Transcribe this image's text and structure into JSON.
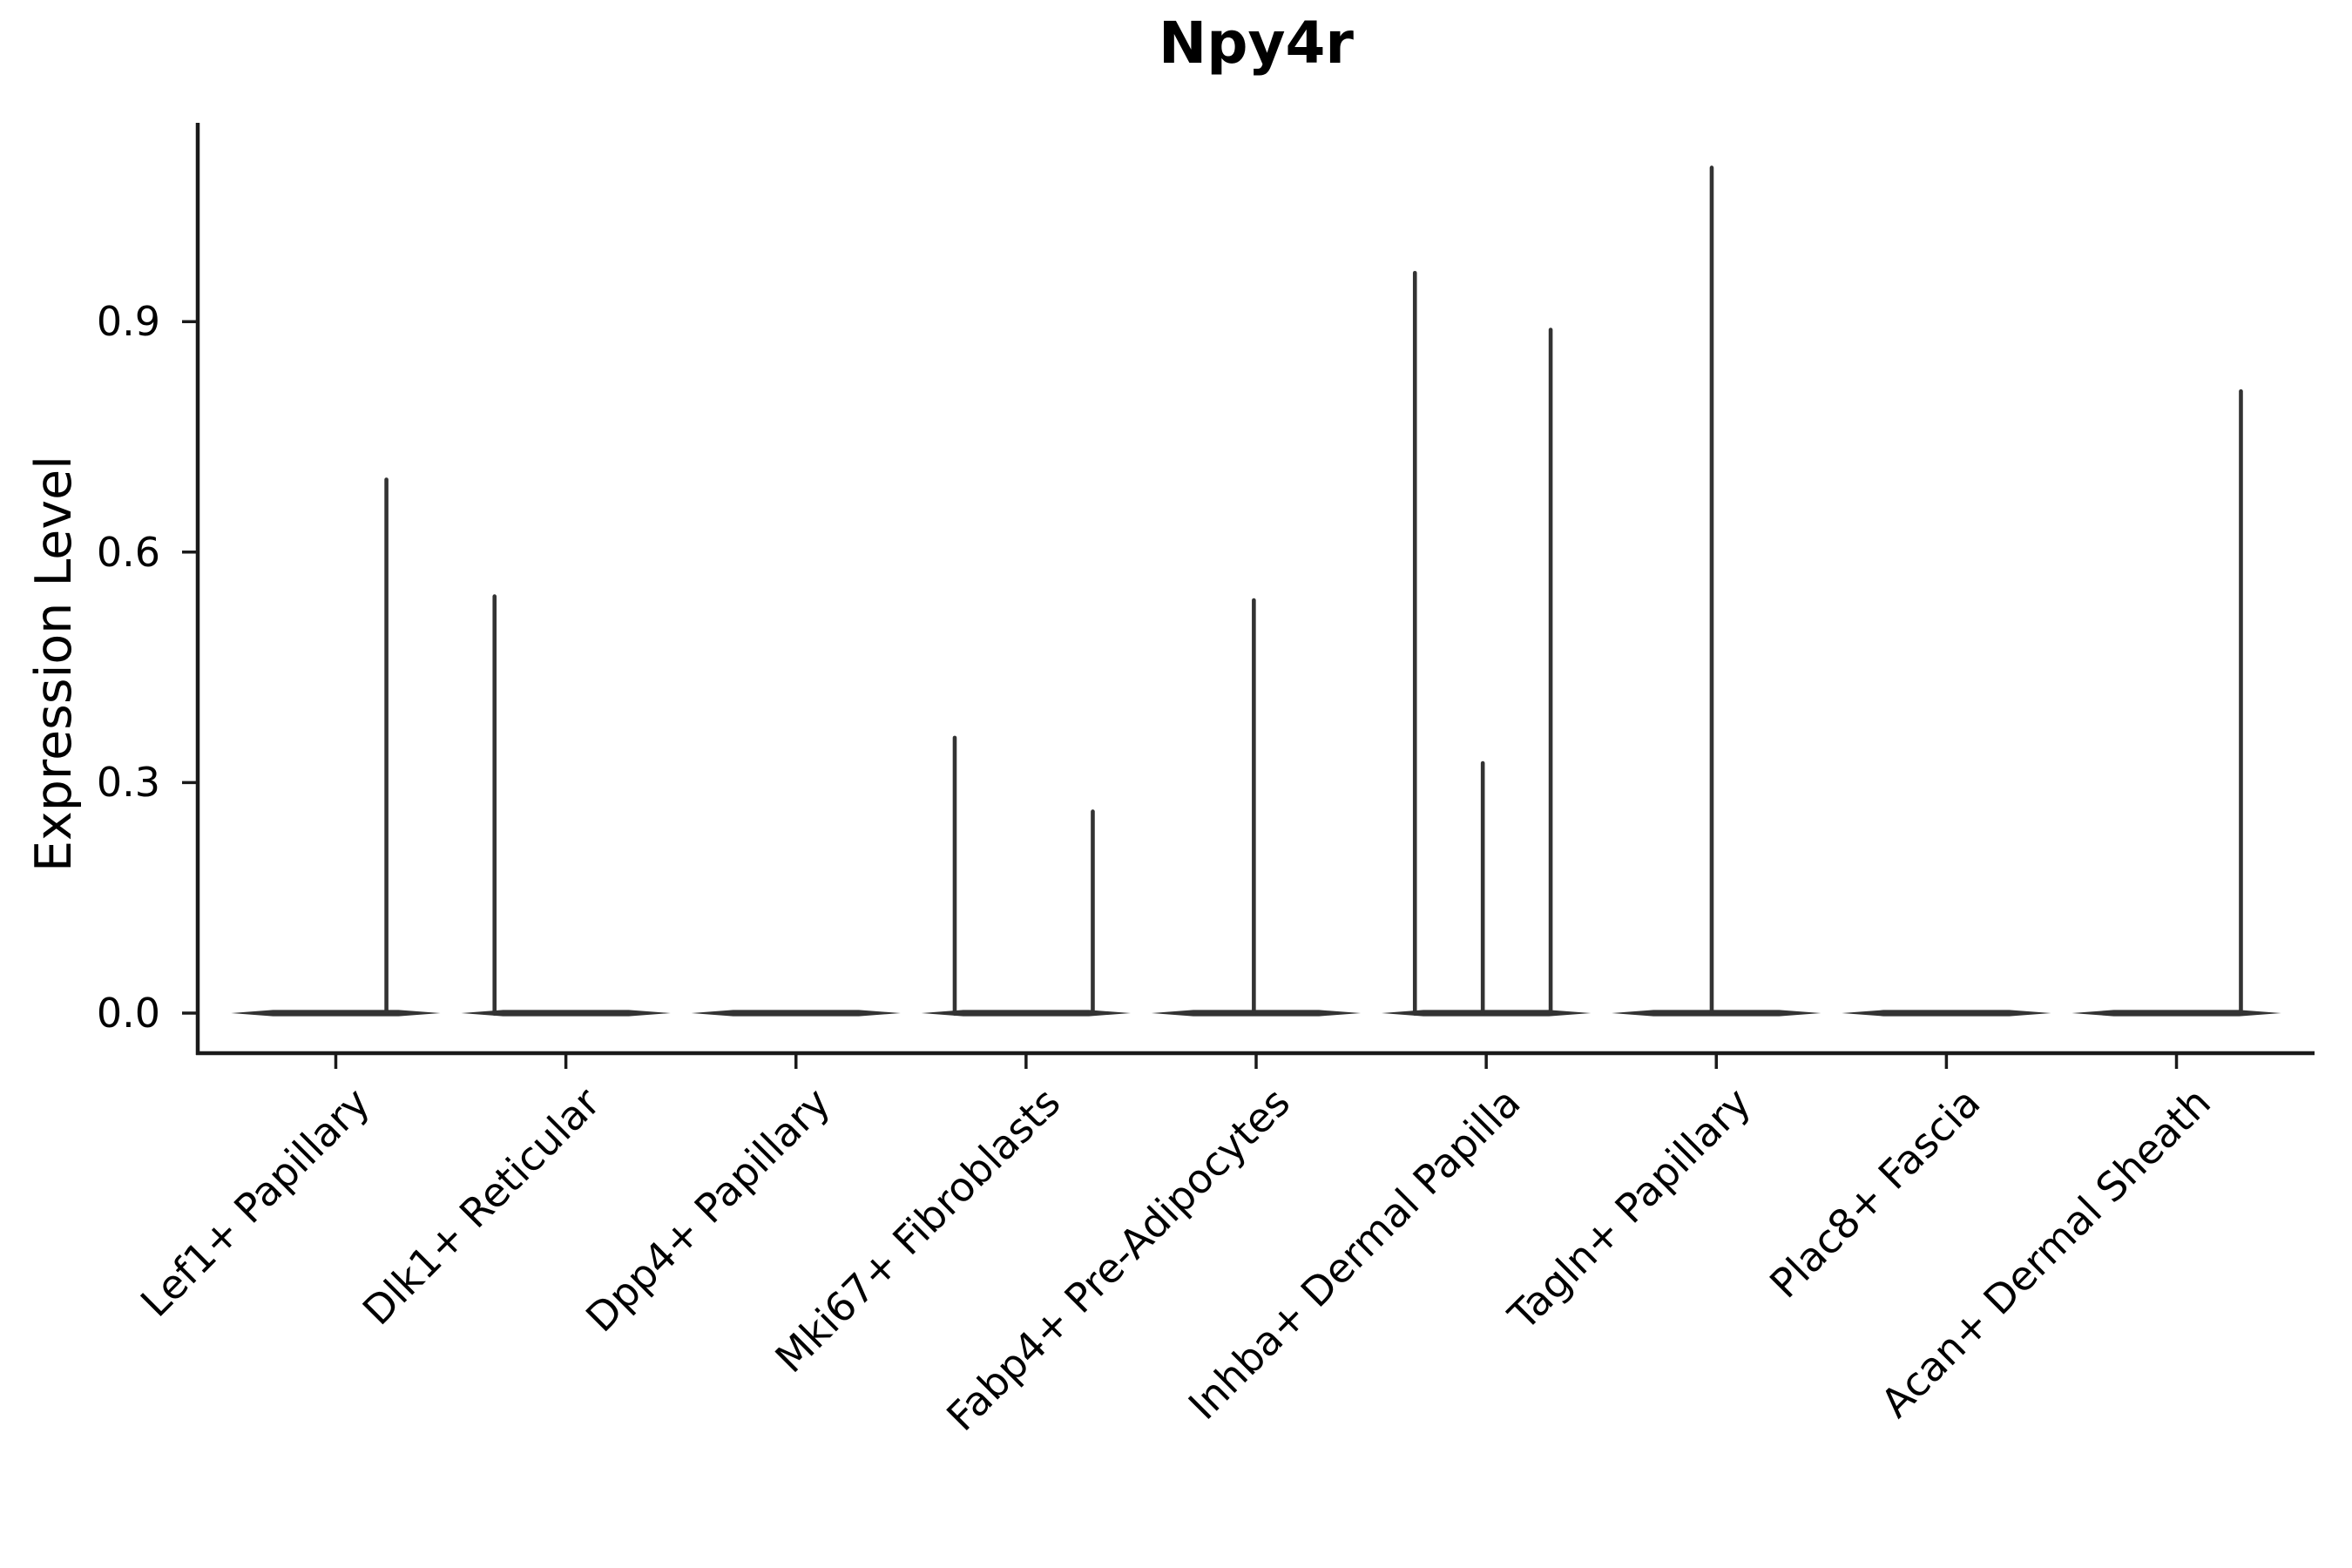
{
  "colors": {
    "background": "#ffffff",
    "axis": "#1a1a1a",
    "violin": "#333333",
    "text": "#000000"
  },
  "chart_data": {
    "type": "violin",
    "title": "Npy4r",
    "xlabel": "",
    "ylabel": "Expression Level",
    "grid": false,
    "legend": "none",
    "yticks": [
      0.0,
      0.3,
      0.6,
      0.9
    ],
    "ytick_labels": [
      "0.0",
      "0.3",
      "0.6",
      "0.9"
    ],
    "ylim": [
      -0.05,
      1.16
    ],
    "xlim": [
      -0.6,
      8.6
    ],
    "categories": [
      "Lef1+ Papillary",
      "Dlk1+ Reticular",
      "Dpp4+ Papillary",
      "Mki67+ Fibroblasts",
      "Fabp4+ Pre-Adipocytes",
      "Inhba+ Dermal Papilla",
      "Tagln+ Papillary",
      "Plac8+ Fascia",
      "Acan+ Dermal Sheath"
    ],
    "violins": [
      {
        "category": "Lef1+ Papillary",
        "body_halfwidth": 0.455,
        "baseline_value": 0.0,
        "spikes": [
          {
            "offset": 0.22,
            "value": 0.697
          }
        ]
      },
      {
        "category": "Dlk1+ Reticular",
        "body_halfwidth": 0.455,
        "baseline_value": 0.0,
        "spikes": [
          {
            "offset": -0.31,
            "value": 0.545
          }
        ]
      },
      {
        "category": "Dpp4+ Papillary",
        "body_halfwidth": 0.455,
        "baseline_value": 0.0,
        "spikes": []
      },
      {
        "category": "Mki67+ Fibroblasts",
        "body_halfwidth": 0.455,
        "baseline_value": 0.0,
        "spikes": [
          {
            "offset": -0.31,
            "value": 0.361
          },
          {
            "offset": 0.29,
            "value": 0.265
          }
        ]
      },
      {
        "category": "Fabp4+ Pre-Adipocytes",
        "body_halfwidth": 0.455,
        "baseline_value": 0.0,
        "spikes": [
          {
            "offset": -0.01,
            "value": 0.54
          }
        ]
      },
      {
        "category": "Inhba+ Dermal Papilla",
        "body_halfwidth": 0.455,
        "baseline_value": 0.0,
        "spikes": [
          {
            "offset": -0.31,
            "value": 0.966
          },
          {
            "offset": -0.015,
            "value": 0.328
          },
          {
            "offset": 0.28,
            "value": 0.892
          }
        ]
      },
      {
        "category": "Tagln+ Papillary",
        "body_halfwidth": 0.455,
        "baseline_value": 0.0,
        "spikes": [
          {
            "offset": -0.02,
            "value": 1.103
          }
        ]
      },
      {
        "category": "Plac8+ Fascia",
        "body_halfwidth": 0.455,
        "baseline_value": 0.0,
        "spikes": []
      },
      {
        "category": "Acan+ Dermal Sheath",
        "body_halfwidth": 0.455,
        "baseline_value": 0.0,
        "spikes": [
          {
            "offset": 0.28,
            "value": 0.812
          }
        ]
      }
    ]
  }
}
